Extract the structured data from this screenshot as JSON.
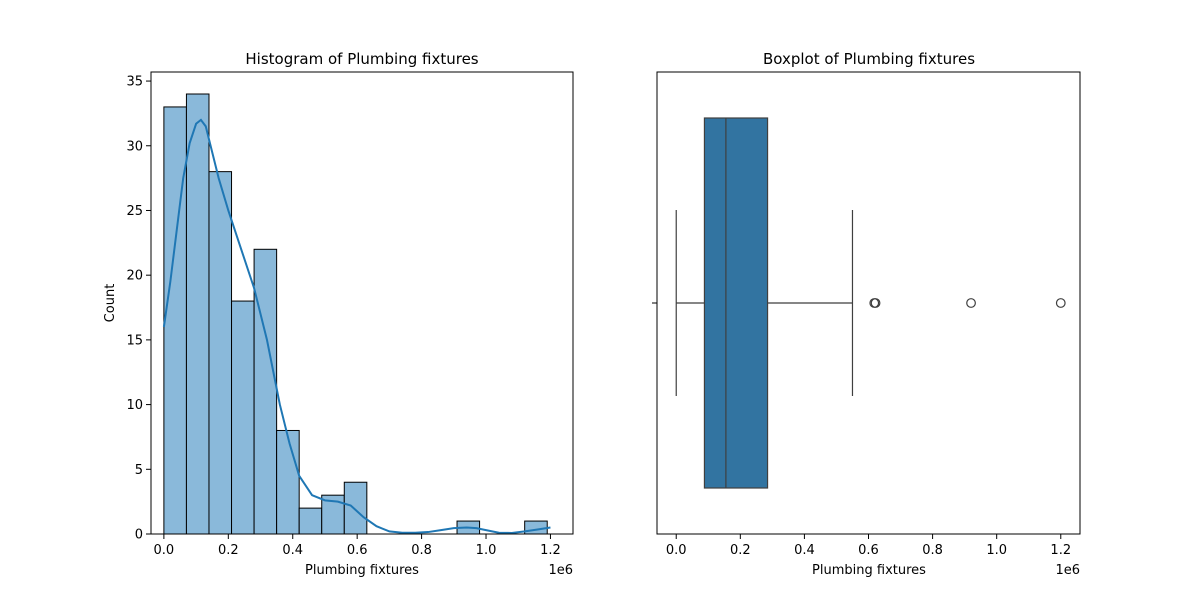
{
  "chart_data": [
    {
      "type": "histogram",
      "title": "Histogram of Plumbing fixtures",
      "xlabel": "Plumbing fixtures",
      "ylabel": "Count",
      "x_offset_label": "1e6",
      "xlim": [
        -40000,
        1270000
      ],
      "ylim": [
        0,
        35.7
      ],
      "x_ticks": [
        0,
        200000,
        400000,
        600000,
        800000,
        1000000,
        1200000
      ],
      "x_tick_labels": [
        "0.0",
        "0.2",
        "0.4",
        "0.6",
        "0.8",
        "1.0",
        "1.2"
      ],
      "y_ticks": [
        0,
        5,
        10,
        15,
        20,
        25,
        30,
        35
      ],
      "y_tick_labels": [
        "0",
        "5",
        "10",
        "15",
        "20",
        "25",
        "30",
        "35"
      ],
      "bin_width": 70000,
      "bins": [
        {
          "start": 0,
          "count": 33
        },
        {
          "start": 70000,
          "count": 34
        },
        {
          "start": 140000,
          "count": 28
        },
        {
          "start": 210000,
          "count": 18
        },
        {
          "start": 280000,
          "count": 22
        },
        {
          "start": 350000,
          "count": 8
        },
        {
          "start": 420000,
          "count": 2
        },
        {
          "start": 490000,
          "count": 3
        },
        {
          "start": 560000,
          "count": 4
        },
        {
          "start": 910000,
          "count": 1
        },
        {
          "start": 1120000,
          "count": 1
        }
      ],
      "kde": {
        "x": [
          0,
          20000,
          40000,
          60000,
          80000,
          100000,
          115000,
          130000,
          150000,
          170000,
          200000,
          240000,
          280000,
          320000,
          360000,
          390000,
          420000,
          460000,
          500000,
          540000,
          580000,
          620000,
          660000,
          700000,
          740000,
          780000,
          820000,
          860000,
          900000,
          940000,
          970000,
          1000000,
          1040000,
          1080000,
          1120000,
          1160000,
          1200000
        ],
        "y": [
          16,
          19.5,
          23.5,
          27.5,
          30.2,
          31.7,
          32.0,
          31.5,
          29.5,
          27.5,
          25.0,
          22.0,
          19.0,
          15.0,
          10.0,
          7.0,
          4.5,
          3.0,
          2.6,
          2.5,
          2.2,
          1.3,
          0.6,
          0.2,
          0.1,
          0.1,
          0.15,
          0.3,
          0.45,
          0.5,
          0.45,
          0.3,
          0.1,
          0.08,
          0.2,
          0.35,
          0.5
        ]
      },
      "colors": {
        "bar_fill": "#8ab9da",
        "bar_edge": "#000000",
        "kde_line": "#1f77b4"
      }
    },
    {
      "type": "boxplot",
      "title": "Boxplot of Plumbing fixtures",
      "xlabel": "Plumbing fixtures",
      "x_offset_label": "1e6",
      "xlim": [
        -60000,
        1260000
      ],
      "x_ticks": [
        0,
        200000,
        400000,
        600000,
        800000,
        1000000,
        1200000
      ],
      "x_tick_labels": [
        "0.0",
        "0.2",
        "0.4",
        "0.6",
        "0.8",
        "1.0",
        "1.2"
      ],
      "whisker_low": 0,
      "q1": 88000,
      "median": 155000,
      "q3": 285000,
      "whisker_high": 550000,
      "outliers": [
        618000,
        622000,
        920000,
        1200000
      ],
      "colors": {
        "box_fill": "#3274a1",
        "box_edge": "#3f3f3f"
      }
    }
  ]
}
